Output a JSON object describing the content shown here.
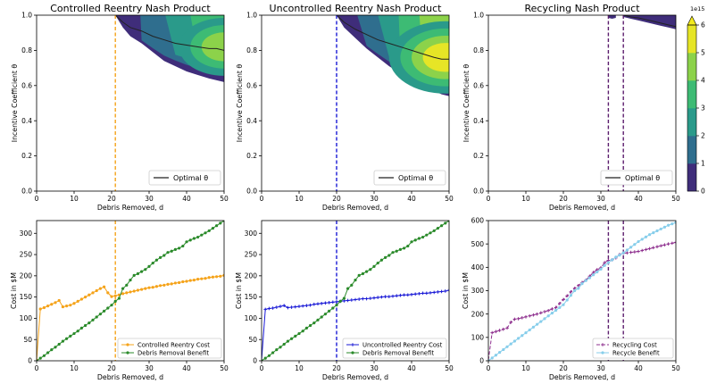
{
  "chart_data": [
    {
      "type": "heatmap",
      "id": "cr",
      "title": "Controlled Reentry Nash Product",
      "xlabel": "Debris Removed, d",
      "ylabel": "Incentive Coefficient θ",
      "xlim": [
        0,
        50
      ],
      "ylim": [
        0,
        1.0
      ],
      "xticks": [
        0,
        10,
        20,
        30,
        40,
        50
      ],
      "yticks": [
        0.0,
        0.2,
        0.4,
        0.6,
        0.8,
        1.0
      ],
      "ytick_labels": [
        "0.0",
        "0.2",
        "0.4",
        "0.6",
        "0.8",
        "1.0"
      ],
      "vline": {
        "x": 21,
        "color": "#f5a31a",
        "style": "dashed"
      },
      "boundary": {
        "d": [
          21,
          23,
          25,
          28,
          31,
          34,
          37,
          40,
          43,
          46,
          48,
          50
        ],
        "theta": [
          1.0,
          0.93,
          0.88,
          0.84,
          0.79,
          0.74,
          0.71,
          0.68,
          0.66,
          0.64,
          0.63,
          0.62
        ]
      },
      "optimal": {
        "d": [
          21,
          23,
          25,
          28,
          31,
          34,
          37,
          40,
          43,
          46,
          48,
          50
        ],
        "theta": [
          1.0,
          0.96,
          0.93,
          0.91,
          0.88,
          0.86,
          0.84,
          0.83,
          0.82,
          0.81,
          0.81,
          0.8
        ]
      },
      "hotspot": {
        "d": 50,
        "theta": 0.82,
        "level": 5
      },
      "legend": "Optimal θ"
    },
    {
      "type": "heatmap",
      "id": "ur",
      "title": "Uncontrolled Reentry Nash Product",
      "xlabel": "Debris Removed, d",
      "ylabel": "Incentive Coefficient θ",
      "xlim": [
        0,
        50
      ],
      "ylim": [
        0,
        1.0
      ],
      "xticks": [
        0,
        10,
        20,
        30,
        40,
        50
      ],
      "yticks": [
        0.0,
        0.2,
        0.4,
        0.6,
        0.8,
        1.0
      ],
      "ytick_labels": [
        "0.0",
        "0.2",
        "0.4",
        "0.6",
        "0.8",
        "1.0"
      ],
      "vline": {
        "x": 20,
        "color": "#1a1ad6",
        "style": "dashed"
      },
      "boundary": {
        "d": [
          20,
          22,
          25,
          28,
          31,
          34,
          37,
          40,
          43,
          46,
          48,
          50
        ],
        "theta": [
          1.0,
          0.93,
          0.87,
          0.81,
          0.76,
          0.71,
          0.67,
          0.63,
          0.6,
          0.57,
          0.55,
          0.54
        ]
      },
      "optimal": {
        "d": [
          20,
          22,
          25,
          28,
          31,
          34,
          37,
          40,
          43,
          46,
          48,
          50
        ],
        "theta": [
          1.0,
          0.96,
          0.92,
          0.89,
          0.86,
          0.84,
          0.82,
          0.8,
          0.78,
          0.76,
          0.75,
          0.75
        ]
      },
      "hotspot": {
        "d": 49,
        "theta": 0.76,
        "level": 6
      },
      "legend": "Optimal θ"
    },
    {
      "type": "heatmap",
      "id": "rc",
      "title": "Recycling Nash Product",
      "xlabel": "Debris Removed, d",
      "ylabel": "Incentive Coefficient θ",
      "xlim": [
        0,
        50
      ],
      "ylim": [
        0,
        1.0
      ],
      "xticks": [
        0,
        10,
        20,
        30,
        40,
        50
      ],
      "yticks": [
        0.0,
        0.2,
        0.4,
        0.6,
        0.8,
        1.0
      ],
      "ytick_labels": [
        "0.0",
        "0.2",
        "0.4",
        "0.6",
        "0.8",
        "1.0"
      ],
      "vlines": [
        {
          "x": 32,
          "color": "#5c1e6e",
          "style": "dashed"
        },
        {
          "x": 36,
          "color": "#5c1e6e",
          "style": "dashed"
        }
      ],
      "bands": [
        {
          "d": [
            32,
            33,
            34
          ],
          "top": 1.0,
          "bottom": [
            0.985,
            0.98,
            0.985
          ]
        },
        {
          "d": [
            36,
            38,
            40,
            42,
            44,
            46,
            48,
            50
          ],
          "top": 1.0,
          "bottom": [
            0.99,
            0.98,
            0.97,
            0.96,
            0.95,
            0.94,
            0.93,
            0.92
          ]
        }
      ],
      "optimal": {
        "d": [
          36,
          38,
          40,
          42,
          44,
          46,
          48,
          50
        ],
        "theta": [
          1.0,
          0.99,
          0.985,
          0.975,
          0.965,
          0.955,
          0.945,
          0.935
        ]
      },
      "legend": "Optimal θ",
      "colorbar": {
        "min": 0,
        "max": 6,
        "ticks": [
          "0",
          "1",
          "2",
          "3",
          "4",
          "5",
          "6"
        ],
        "multiplier": "1e15"
      }
    },
    {
      "type": "line",
      "id": "crc",
      "xlabel": "Debris Removed, d",
      "ylabel": "Cost in $M",
      "xlim": [
        0,
        50
      ],
      "ylim": [
        0,
        330
      ],
      "xticks": [
        0,
        10,
        20,
        30,
        40,
        50
      ],
      "yticks": [
        0,
        50,
        100,
        150,
        200,
        250,
        300
      ],
      "vline": {
        "x": 21,
        "color": "#f5a31a",
        "style": "dashed"
      },
      "series": [
        {
          "name": "Controlled Reentry Cost",
          "color": "#f5a31a",
          "marker": "circle",
          "x": [
            0,
            1,
            2,
            3,
            4,
            5,
            6,
            7,
            8,
            9,
            10,
            11,
            12,
            13,
            14,
            15,
            16,
            17,
            18,
            19,
            20,
            21,
            22,
            23,
            24,
            25,
            26,
            27,
            28,
            29,
            30,
            31,
            32,
            33,
            34,
            35,
            36,
            37,
            38,
            39,
            40,
            41,
            42,
            43,
            44,
            45,
            46,
            47,
            48,
            49,
            50
          ],
          "values": [
            2,
            122,
            125,
            129,
            133,
            137,
            142,
            127,
            129,
            131,
            135,
            140,
            145,
            150,
            155,
            160,
            165,
            170,
            174,
            160,
            151,
            153,
            155,
            158,
            160,
            162,
            164,
            166,
            168,
            170,
            172,
            173,
            175,
            177,
            178,
            180,
            181,
            183,
            184,
            186,
            187,
            189,
            190,
            192,
            193,
            194,
            196,
            197,
            198,
            199,
            201
          ]
        },
        {
          "name": "Debris Removal Benefit",
          "color": "#2a8a2a",
          "marker": "circle",
          "x": [
            0,
            1,
            2,
            3,
            4,
            5,
            6,
            7,
            8,
            9,
            10,
            11,
            12,
            13,
            14,
            15,
            16,
            17,
            18,
            19,
            20,
            21,
            22,
            23,
            24,
            25,
            26,
            27,
            28,
            29,
            30,
            31,
            32,
            33,
            34,
            35,
            36,
            37,
            38,
            39,
            40,
            41,
            42,
            43,
            44,
            45,
            46,
            47,
            48,
            49,
            50
          ],
          "values": [
            0,
            6,
            12,
            19,
            26,
            32,
            39,
            46,
            52,
            58,
            64,
            70,
            77,
            83,
            89,
            96,
            103,
            110,
            117,
            124,
            131,
            140,
            147,
            170,
            178,
            190,
            201,
            205,
            210,
            215,
            222,
            230,
            237,
            243,
            248,
            255,
            258,
            262,
            265,
            270,
            280,
            284,
            288,
            291,
            296,
            301,
            306,
            312,
            318,
            324,
            330
          ]
        }
      ]
    },
    {
      "type": "line",
      "id": "urc",
      "xlabel": "Debris Removed, d",
      "ylabel": "Cost in $M",
      "xlim": [
        0,
        50
      ],
      "ylim": [
        0,
        330
      ],
      "xticks": [
        0,
        10,
        20,
        30,
        40,
        50
      ],
      "yticks": [
        0,
        50,
        100,
        150,
        200,
        250,
        300
      ],
      "vline": {
        "x": 20,
        "color": "#1a1ad6",
        "style": "dashed"
      },
      "series": [
        {
          "name": "Uncontrolled Reentry Cost",
          "color": "#1a1ad6",
          "marker": "plus",
          "x": [
            0,
            1,
            2,
            3,
            4,
            5,
            6,
            7,
            8,
            9,
            10,
            11,
            12,
            13,
            14,
            15,
            16,
            17,
            18,
            19,
            20,
            21,
            22,
            23,
            24,
            25,
            26,
            27,
            28,
            29,
            30,
            31,
            32,
            33,
            34,
            35,
            36,
            37,
            38,
            39,
            40,
            41,
            42,
            43,
            44,
            45,
            46,
            47,
            48,
            49,
            50
          ],
          "values": [
            2,
            121,
            123,
            124,
            126,
            128,
            130,
            125,
            126,
            127,
            128,
            129,
            130,
            131,
            133,
            134,
            135,
            136,
            137,
            138,
            139,
            140,
            141,
            142,
            143,
            144,
            145,
            146,
            146,
            147,
            148,
            149,
            150,
            151,
            151,
            152,
            153,
            154,
            155,
            155,
            156,
            157,
            158,
            159,
            159,
            160,
            161,
            162,
            163,
            164,
            166
          ]
        },
        {
          "name": "Debris Removal Benefit",
          "color": "#2a8a2a",
          "marker": "circle",
          "x": [
            0,
            1,
            2,
            3,
            4,
            5,
            6,
            7,
            8,
            9,
            10,
            11,
            12,
            13,
            14,
            15,
            16,
            17,
            18,
            19,
            20,
            21,
            22,
            23,
            24,
            25,
            26,
            27,
            28,
            29,
            30,
            31,
            32,
            33,
            34,
            35,
            36,
            37,
            38,
            39,
            40,
            41,
            42,
            43,
            44,
            45,
            46,
            47,
            48,
            49,
            50
          ],
          "values": [
            0,
            6,
            12,
            19,
            26,
            32,
            39,
            46,
            52,
            58,
            64,
            70,
            77,
            83,
            89,
            96,
            103,
            110,
            117,
            124,
            131,
            140,
            147,
            170,
            178,
            190,
            201,
            205,
            210,
            215,
            222,
            230,
            237,
            243,
            248,
            255,
            258,
            262,
            265,
            270,
            280,
            284,
            288,
            291,
            296,
            301,
            306,
            312,
            318,
            324,
            330
          ]
        }
      ]
    },
    {
      "type": "line",
      "id": "rcc",
      "xlabel": "Debris Removed, d",
      "ylabel": "Cost in $M",
      "xlim": [
        0,
        50
      ],
      "ylim": [
        0,
        600
      ],
      "xticks": [
        0,
        10,
        20,
        30,
        40,
        50
      ],
      "yticks": [
        0,
        100,
        200,
        300,
        400,
        500,
        600
      ],
      "vlines": [
        {
          "x": 32,
          "color": "#5c1e6e",
          "style": "dashed"
        },
        {
          "x": 36,
          "color": "#5c1e6e",
          "style": "dashed"
        }
      ],
      "series": [
        {
          "name": "Recycling Cost",
          "color": "#8e2f8e",
          "marker": "plus",
          "x": [
            0,
            1,
            2,
            3,
            4,
            5,
            6,
            7,
            8,
            9,
            10,
            11,
            12,
            13,
            14,
            15,
            16,
            17,
            18,
            19,
            20,
            21,
            22,
            23,
            24,
            25,
            26,
            27,
            28,
            29,
            30,
            31,
            32,
            33,
            34,
            35,
            36,
            37,
            38,
            39,
            40,
            41,
            42,
            43,
            44,
            45,
            46,
            47,
            48,
            49,
            50
          ],
          "values": [
            3,
            120,
            125,
            130,
            135,
            140,
            165,
            178,
            180,
            184,
            188,
            192,
            196,
            200,
            205,
            210,
            215,
            222,
            228,
            245,
            262,
            278,
            295,
            310,
            322,
            335,
            345,
            362,
            378,
            390,
            398,
            420,
            430,
            432,
            440,
            455,
            460,
            462,
            464,
            466,
            468,
            472,
            476,
            480,
            484,
            488,
            492,
            496,
            500,
            503,
            507
          ]
        },
        {
          "name": "Recycle Benefit",
          "color": "#87ceeb",
          "marker": "circle",
          "x": [
            0,
            1,
            2,
            3,
            4,
            5,
            6,
            7,
            8,
            9,
            10,
            11,
            12,
            13,
            14,
            15,
            16,
            17,
            18,
            19,
            20,
            21,
            22,
            23,
            24,
            25,
            26,
            27,
            28,
            29,
            30,
            31,
            32,
            33,
            34,
            35,
            36,
            37,
            38,
            39,
            40,
            41,
            42,
            43,
            44,
            45,
            46,
            47,
            48,
            49,
            50
          ],
          "values": [
            0,
            12,
            24,
            36,
            48,
            60,
            72,
            84,
            96,
            108,
            120,
            132,
            144,
            156,
            168,
            180,
            192,
            204,
            216,
            228,
            240,
            260,
            280,
            300,
            310,
            330,
            343,
            355,
            368,
            380,
            392,
            408,
            420,
            432,
            444,
            452,
            462,
            474,
            486,
            498,
            510,
            520,
            530,
            540,
            548,
            556,
            564,
            572,
            580,
            586,
            592
          ]
        }
      ]
    }
  ]
}
